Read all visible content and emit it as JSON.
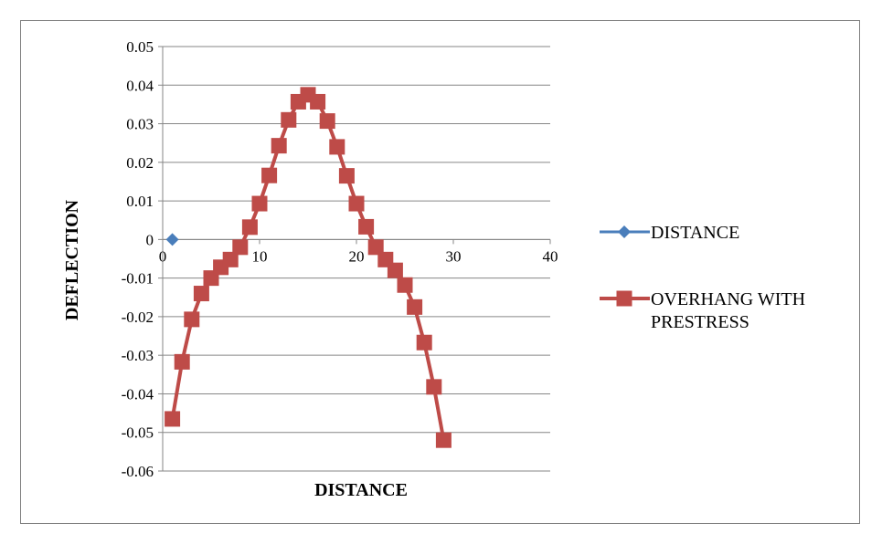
{
  "chart_data": {
    "type": "scatter",
    "title": "",
    "xlabel": "DISTANCE",
    "ylabel": "DEFLECTION",
    "xlim": [
      0,
      40
    ],
    "ylim": [
      -0.06,
      0.05
    ],
    "x_ticks": [
      "0",
      "10",
      "20",
      "30",
      "40"
    ],
    "y_ticks": [
      "0.05",
      "0.04",
      "0.03",
      "0.02",
      "0.01",
      "0",
      "-0.01",
      "-0.02",
      "-0.03",
      "-0.04",
      "-0.05",
      "-0.06"
    ],
    "grid": true,
    "legend_position": "right",
    "series": [
      {
        "name": "DISTANCE",
        "color": "#4a7ebb",
        "marker": "diamond",
        "line": false,
        "x": [
          1
        ],
        "y": [
          0
        ]
      },
      {
        "name": "OVERHANG WITH PRESTRESS",
        "color": "#be4b48",
        "marker": "square",
        "line": true,
        "x": [
          1,
          2,
          3,
          4,
          5,
          6,
          7,
          8,
          9,
          10,
          11,
          12,
          13,
          14,
          15,
          16,
          17,
          18,
          19,
          20,
          21,
          22,
          23,
          24,
          25,
          26,
          27,
          28,
          29
        ],
        "y": [
          -0.0465,
          -0.0317,
          -0.0207,
          -0.014,
          -0.01,
          -0.0072,
          -0.0052,
          -0.002,
          0.0032,
          0.0093,
          0.0166,
          0.0243,
          0.031,
          0.0357,
          0.0375,
          0.0357,
          0.0307,
          0.024,
          0.0165,
          0.0093,
          0.0033,
          -0.002,
          -0.0052,
          -0.008,
          -0.0118,
          -0.0175,
          -0.0267,
          -0.0382,
          -0.052
        ]
      }
    ]
  }
}
